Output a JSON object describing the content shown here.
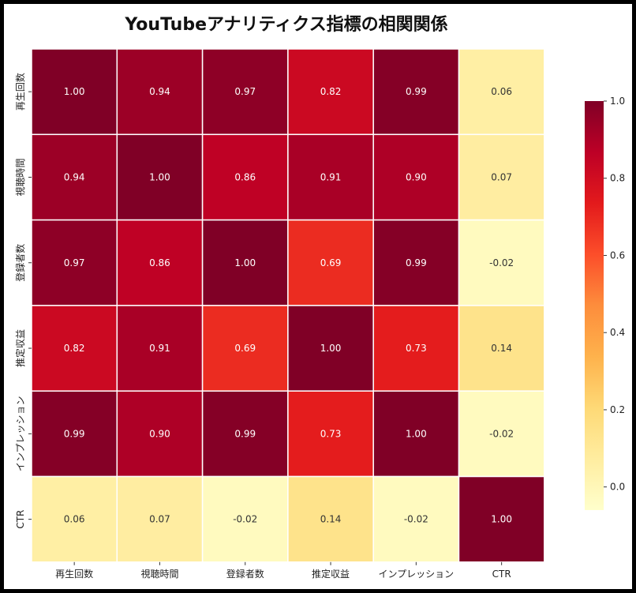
{
  "chart_data": {
    "type": "heatmap",
    "title": "YouTubeアナリティクス指標の相関関係",
    "x_labels": [
      "再生回数",
      "視聴時間",
      "登録者数",
      "推定収益",
      "インプレッション",
      "CTR"
    ],
    "y_labels": [
      "再生回数",
      "視聴時間",
      "登録者数",
      "推定収益",
      "インプレッション",
      "CTR"
    ],
    "values": [
      [
        1.0,
        0.94,
        0.97,
        0.82,
        0.99,
        0.06
      ],
      [
        0.94,
        1.0,
        0.86,
        0.91,
        0.9,
        0.07
      ],
      [
        0.97,
        0.86,
        1.0,
        0.69,
        0.99,
        -0.02
      ],
      [
        0.82,
        0.91,
        0.69,
        1.0,
        0.73,
        0.14
      ],
      [
        0.99,
        0.9,
        0.99,
        0.73,
        1.0,
        -0.02
      ],
      [
        0.06,
        0.07,
        -0.02,
        0.14,
        -0.02,
        1.0
      ]
    ],
    "value_labels": [
      [
        "1.00",
        "0.94",
        "0.97",
        "0.82",
        "0.99",
        "0.06"
      ],
      [
        "0.94",
        "1.00",
        "0.86",
        "0.91",
        "0.90",
        "0.07"
      ],
      [
        "0.97",
        "0.86",
        "1.00",
        "0.69",
        "0.99",
        "-0.02"
      ],
      [
        "0.82",
        "0.91",
        "0.69",
        "1.00",
        "0.73",
        "0.14"
      ],
      [
        "0.99",
        "0.90",
        "0.99",
        "0.73",
        "1.00",
        "-0.02"
      ],
      [
        "0.06",
        "0.07",
        "-0.02",
        "0.14",
        "-0.02",
        "1.00"
      ]
    ],
    "colormap": "YlOrRd",
    "colorbar": {
      "range": [
        -0.06,
        1.0
      ],
      "ticks": [
        0.0,
        0.2,
        0.4,
        0.6,
        0.8,
        1.0
      ],
      "tick_labels": [
        "0.0",
        "0.2",
        "0.4",
        "0.6",
        "0.8",
        "1.0"
      ]
    },
    "colors": {
      "background": "#000000",
      "panel": "#ffffff",
      "cell_border": "#ffffff"
    }
  }
}
